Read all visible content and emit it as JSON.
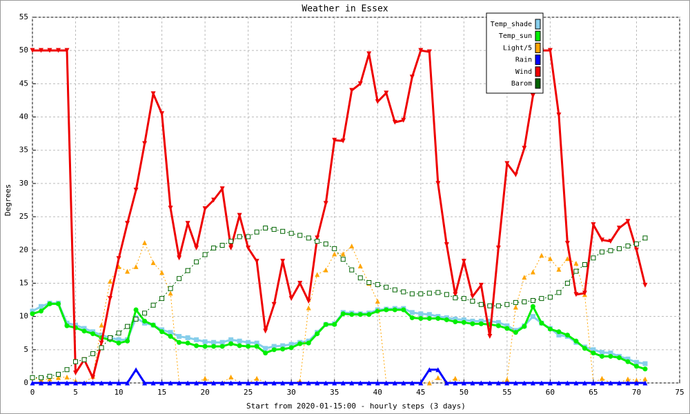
{
  "chart_data": {
    "type": "line",
    "title": "Weather in Essex",
    "ylabel": "Degrees",
    "xlabel": "Start from 2020-01-15:00 - hourly steps (3 days)",
    "x": [
      0,
      1,
      2,
      3,
      4,
      5,
      6,
      7,
      8,
      9,
      10,
      11,
      12,
      13,
      14,
      15,
      16,
      17,
      18,
      19,
      20,
      21,
      22,
      23,
      24,
      25,
      26,
      27,
      28,
      29,
      30,
      31,
      32,
      33,
      34,
      35,
      36,
      37,
      38,
      39,
      40,
      41,
      42,
      43,
      44,
      45,
      46,
      47,
      48,
      49,
      50,
      51,
      52,
      53,
      54,
      55,
      56,
      57,
      58,
      59,
      60,
      61,
      62,
      63,
      64,
      65,
      66,
      67,
      68,
      69,
      70,
      71
    ],
    "xlim": [
      0,
      75
    ],
    "xticks": [
      0,
      5,
      10,
      15,
      20,
      25,
      30,
      35,
      40,
      45,
      50,
      55,
      60,
      65,
      70,
      75
    ],
    "ylim": [
      0,
      55
    ],
    "yticks": [
      0,
      5,
      10,
      15,
      20,
      25,
      30,
      35,
      40,
      45,
      50,
      55
    ],
    "grid": true,
    "legend": "upper right",
    "series": [
      {
        "name": "Temp_shade",
        "color": "#87ceeb",
        "marker": "square",
        "dash": false,
        "width": 3,
        "values": [
          10.8,
          11.5,
          12,
          12,
          9,
          8.7,
          8.2,
          7.7,
          7.2,
          6.8,
          6.5,
          6.5,
          9.8,
          9,
          8.7,
          8,
          7.6,
          7,
          6.8,
          6.5,
          6.2,
          6.1,
          6.1,
          6.5,
          6.3,
          6.1,
          6,
          5.2,
          5.5,
          5.6,
          5.8,
          6.1,
          6.3,
          7.6,
          8.8,
          8.9,
          10.6,
          10.5,
          10.4,
          10.5,
          11,
          11.1,
          11.2,
          11.2,
          10.6,
          10.4,
          10.3,
          10,
          9.8,
          9.6,
          9.5,
          9.3,
          9.3,
          9.3,
          9.1,
          8.6,
          7.9,
          8.6,
          10,
          9,
          8.2,
          7.2,
          7,
          6.1,
          5.4,
          5,
          4.6,
          4.5,
          4,
          3.6,
          3.1,
          2.9
        ]
      },
      {
        "name": "Temp_sun",
        "color": "#00ee00",
        "marker": "circle",
        "dash": false,
        "width": 3,
        "values": [
          10.4,
          10.8,
          11.9,
          11.9,
          8.6,
          8.3,
          7.8,
          7.4,
          6.8,
          6.5,
          6,
          6.3,
          11,
          9.3,
          8.7,
          7.7,
          7,
          6.1,
          6,
          5.6,
          5.5,
          5.5,
          5.5,
          5.9,
          5.6,
          5.5,
          5.5,
          4.5,
          5,
          5.1,
          5.3,
          5.9,
          6,
          7.4,
          8.8,
          8.8,
          10.4,
          10.3,
          10.3,
          10.3,
          10.8,
          11,
          11,
          11,
          9.8,
          9.7,
          9.7,
          9.7,
          9.5,
          9.2,
          9.1,
          8.9,
          8.9,
          8.8,
          8.6,
          8.2,
          7.6,
          8.5,
          11.5,
          9,
          8.1,
          7.7,
          7.2,
          6.3,
          5.2,
          4.5,
          4,
          4,
          3.8,
          3.2,
          2.5,
          2.1
        ]
      },
      {
        "name": "Light/5",
        "color": "#ffa500",
        "marker": "triangle-up",
        "dash": true,
        "width": 1,
        "values": [
          0.8,
          0.5,
          0.6,
          0.8,
          0.9,
          0.3,
          0,
          1,
          8.7,
          15.3,
          17.5,
          16.8,
          17.5,
          21.1,
          18.1,
          16.6,
          13.5,
          0,
          0,
          0,
          0.7,
          0,
          0,
          0.9,
          0,
          0,
          0.7,
          0,
          0,
          0,
          0,
          0.3,
          11.3,
          16.3,
          17,
          19.4,
          19.4,
          20.6,
          17.6,
          15,
          12.3,
          0,
          0,
          0,
          0,
          0,
          0,
          0.8,
          0,
          0.7,
          0,
          0,
          0,
          0,
          0,
          0.5,
          11.4,
          15.9,
          16.7,
          19.2,
          18.7,
          17.1,
          18.7,
          18,
          13.3,
          0,
          0.7,
          0,
          0,
          0.6,
          0.4,
          0.6
        ]
      },
      {
        "name": "Rain",
        "color": "#0000ff",
        "marker": "triangle-up",
        "dash": false,
        "width": 3,
        "values": [
          0,
          0,
          0,
          0,
          0,
          0,
          0,
          0,
          0,
          0,
          0,
          0,
          2,
          0,
          0,
          0,
          0,
          0,
          0,
          0,
          0,
          0,
          0,
          0,
          0,
          0,
          0,
          0,
          0,
          0,
          0,
          0,
          0,
          0,
          0,
          0,
          0,
          0,
          0,
          0,
          0,
          0,
          0,
          0,
          0,
          0,
          2,
          2,
          0,
          0,
          0,
          0,
          0,
          0,
          0,
          0,
          0,
          0,
          0,
          0,
          0,
          0,
          0,
          0,
          0,
          0,
          0,
          0,
          0,
          0,
          0,
          0
        ]
      },
      {
        "name": "Wind",
        "color": "#ee0000",
        "marker": "triangle-down",
        "dash": false,
        "width": 3,
        "values": [
          50,
          50,
          50,
          50,
          50,
          1.5,
          3.5,
          0.8,
          6,
          12.7,
          18.7,
          24,
          29,
          36,
          43.5,
          40.5,
          26.3,
          18.8,
          24,
          20.3,
          26.2,
          27.5,
          29.2,
          20.3,
          25.2,
          20.3,
          18.3,
          7.8,
          11.8,
          18.3,
          12.7,
          15,
          12.3,
          21.8,
          27,
          36.5,
          36.4,
          44,
          45,
          49.5,
          42.3,
          43.6,
          39.2,
          39.5,
          46,
          50,
          49.8,
          30,
          20.8,
          13.3,
          18.3,
          13,
          14.7,
          7,
          20.3,
          33,
          31.3,
          35.3,
          43.2,
          50,
          50,
          40.3,
          21,
          13.3,
          13.5,
          23.8,
          21.5,
          21.3,
          23.3,
          24.3,
          20,
          14.7
        ]
      },
      {
        "name": "Barom",
        "color": "#006400",
        "marker": "square-open",
        "dash": true,
        "width": 1,
        "values": [
          0.8,
          0.8,
          1,
          1.3,
          2,
          3.2,
          3.5,
          4.4,
          5.3,
          6.8,
          7.5,
          8.5,
          9.6,
          10.5,
          11.7,
          12.7,
          14.2,
          15.7,
          16.9,
          18.2,
          19.3,
          20.3,
          20.7,
          21.3,
          22,
          22,
          22.7,
          23.3,
          23.1,
          22.8,
          22.5,
          22.2,
          21.8,
          21.3,
          20.9,
          20.2,
          18.6,
          17,
          15.8,
          15.1,
          14.8,
          14.4,
          14,
          13.7,
          13.4,
          13.4,
          13.5,
          13.6,
          13.3,
          12.8,
          12.7,
          12.3,
          11.8,
          11.6,
          11.6,
          11.8,
          12.1,
          12.2,
          12.4,
          12.7,
          12.9,
          13.6,
          15,
          16.8,
          17.8,
          18.8,
          19.7,
          19.9,
          20.2,
          20.6,
          20.9,
          21.8
        ]
      }
    ]
  }
}
